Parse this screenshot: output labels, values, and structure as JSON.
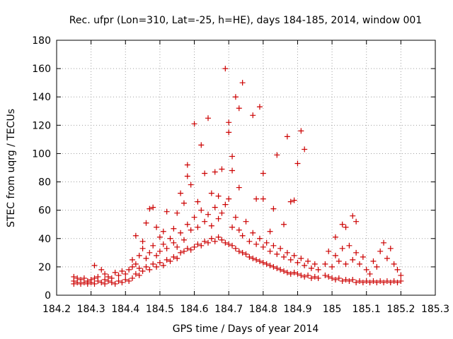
{
  "chart_data": {
    "type": "scatter",
    "title": "Rec. ufpr (Lon=310, Lat=-25, h=HE), days 184-185, 2014, window 001",
    "xlabel": "GPS time / Days of year 2014",
    "ylabel": "STEC from uqrg / TECUs",
    "xlim": [
      184.2,
      185.3
    ],
    "ylim": [
      0,
      180
    ],
    "xticks": [
      184.2,
      184.3,
      184.4,
      184.5,
      184.6,
      184.7,
      184.8,
      184.9,
      185,
      185.1,
      185.2,
      185.3
    ],
    "xtick_labels": [
      "184.2",
      "184.3",
      "184.4",
      "184.5",
      "184.6",
      "184.7",
      "184.8",
      "184.9",
      "185",
      "185.1",
      "185.2",
      "185.3"
    ],
    "yticks": [
      0,
      20,
      40,
      60,
      80,
      100,
      120,
      140,
      160,
      180
    ],
    "ytick_labels": [
      "0",
      "20",
      "40",
      "60",
      "80",
      "100",
      "120",
      "140",
      "160",
      "180"
    ],
    "grid": true,
    "marker": "plus",
    "color": "#cc0000",
    "series": [
      {
        "points": [
          [
            184.25,
            8
          ],
          [
            184.25,
            10
          ],
          [
            184.25,
            13
          ],
          [
            184.26,
            9
          ],
          [
            184.26,
            12
          ],
          [
            184.27,
            8
          ],
          [
            184.27,
            11
          ],
          [
            184.28,
            9
          ],
          [
            184.28,
            12
          ],
          [
            184.29,
            8
          ],
          [
            184.29,
            10
          ],
          [
            184.3,
            9
          ],
          [
            184.3,
            11
          ],
          [
            184.31,
            21
          ],
          [
            184.31,
            8
          ],
          [
            184.31,
            12
          ],
          [
            184.32,
            10
          ],
          [
            184.32,
            13
          ],
          [
            184.33,
            9
          ],
          [
            184.33,
            18
          ],
          [
            184.34,
            8
          ],
          [
            184.34,
            11
          ],
          [
            184.34,
            15
          ],
          [
            184.35,
            10
          ],
          [
            184.35,
            13
          ],
          [
            184.36,
            9
          ],
          [
            184.36,
            12
          ],
          [
            184.37,
            8
          ],
          [
            184.37,
            16
          ],
          [
            184.38,
            10
          ],
          [
            184.38,
            14
          ],
          [
            184.39,
            9
          ],
          [
            184.39,
            17
          ],
          [
            184.4,
            11
          ],
          [
            184.4,
            15
          ],
          [
            184.41,
            10
          ],
          [
            184.41,
            18
          ],
          [
            184.42,
            12
          ],
          [
            184.42,
            20
          ],
          [
            184.42,
            25
          ],
          [
            184.43,
            15
          ],
          [
            184.43,
            22
          ],
          [
            184.43,
            42
          ],
          [
            184.44,
            14
          ],
          [
            184.44,
            19
          ],
          [
            184.44,
            28
          ],
          [
            184.45,
            17
          ],
          [
            184.45,
            33
          ],
          [
            184.45,
            38
          ],
          [
            184.46,
            20
          ],
          [
            184.46,
            26
          ],
          [
            184.46,
            51
          ],
          [
            184.47,
            18
          ],
          [
            184.47,
            30
          ],
          [
            184.47,
            61
          ],
          [
            184.48,
            22
          ],
          [
            184.48,
            35
          ],
          [
            184.48,
            62
          ],
          [
            184.49,
            20
          ],
          [
            184.49,
            28
          ],
          [
            184.49,
            48
          ],
          [
            184.5,
            23
          ],
          [
            184.5,
            31
          ],
          [
            184.5,
            41
          ],
          [
            184.51,
            21
          ],
          [
            184.51,
            36
          ],
          [
            184.51,
            45
          ],
          [
            184.52,
            25
          ],
          [
            184.52,
            33
          ],
          [
            184.52,
            59
          ],
          [
            184.53,
            24
          ],
          [
            184.53,
            40
          ],
          [
            184.54,
            27
          ],
          [
            184.54,
            37
          ],
          [
            184.54,
            47
          ],
          [
            184.55,
            26
          ],
          [
            184.55,
            34
          ],
          [
            184.55,
            58
          ],
          [
            184.56,
            30
          ],
          [
            184.56,
            44
          ],
          [
            184.56,
            72
          ],
          [
            184.57,
            31
          ],
          [
            184.57,
            39
          ],
          [
            184.57,
            65
          ],
          [
            184.58,
            33
          ],
          [
            184.58,
            50
          ],
          [
            184.58,
            84
          ],
          [
            184.58,
            92
          ],
          [
            184.59,
            32
          ],
          [
            184.59,
            46
          ],
          [
            184.59,
            78
          ],
          [
            184.6,
            34
          ],
          [
            184.6,
            55
          ],
          [
            184.6,
            121
          ],
          [
            184.61,
            36
          ],
          [
            184.61,
            48
          ],
          [
            184.61,
            66
          ],
          [
            184.62,
            35
          ],
          [
            184.62,
            60
          ],
          [
            184.62,
            106
          ],
          [
            184.63,
            38
          ],
          [
            184.63,
            52
          ],
          [
            184.63,
            86
          ],
          [
            184.64,
            37
          ],
          [
            184.64,
            57
          ],
          [
            184.64,
            125
          ],
          [
            184.65,
            40
          ],
          [
            184.65,
            49
          ],
          [
            184.65,
            72
          ],
          [
            184.66,
            38
          ],
          [
            184.66,
            62
          ],
          [
            184.66,
            87
          ],
          [
            184.67,
            41
          ],
          [
            184.67,
            54
          ],
          [
            184.67,
            70
          ],
          [
            184.68,
            39
          ],
          [
            184.68,
            58
          ],
          [
            184.68,
            89
          ],
          [
            184.69,
            37
          ],
          [
            184.69,
            64
          ],
          [
            184.69,
            160
          ],
          [
            184.7,
            36
          ],
          [
            184.7,
            68
          ],
          [
            184.7,
            115
          ],
          [
            184.7,
            122
          ],
          [
            184.71,
            35
          ],
          [
            184.71,
            48
          ],
          [
            184.71,
            88
          ],
          [
            184.71,
            98
          ],
          [
            184.72,
            33
          ],
          [
            184.72,
            55
          ],
          [
            184.72,
            140
          ],
          [
            184.73,
            31
          ],
          [
            184.73,
            46
          ],
          [
            184.73,
            132
          ],
          [
            184.73,
            76
          ],
          [
            184.74,
            30
          ],
          [
            184.74,
            42
          ],
          [
            184.74,
            150
          ],
          [
            184.75,
            29
          ],
          [
            184.75,
            52
          ],
          [
            184.76,
            27
          ],
          [
            184.76,
            38
          ],
          [
            184.77,
            26
          ],
          [
            184.77,
            44
          ],
          [
            184.77,
            127
          ],
          [
            184.78,
            25
          ],
          [
            184.78,
            36
          ],
          [
            184.78,
            68
          ],
          [
            184.79,
            24
          ],
          [
            184.79,
            40
          ],
          [
            184.79,
            133
          ],
          [
            184.8,
            23
          ],
          [
            184.8,
            34
          ],
          [
            184.8,
            68
          ],
          [
            184.8,
            86
          ],
          [
            184.81,
            22
          ],
          [
            184.81,
            37
          ],
          [
            184.82,
            21
          ],
          [
            184.82,
            31
          ],
          [
            184.82,
            45
          ],
          [
            184.83,
            20
          ],
          [
            184.83,
            35
          ],
          [
            184.83,
            61
          ],
          [
            184.84,
            19
          ],
          [
            184.84,
            29
          ],
          [
            184.84,
            99
          ],
          [
            184.85,
            18
          ],
          [
            184.85,
            33
          ],
          [
            184.86,
            17
          ],
          [
            184.86,
            27
          ],
          [
            184.86,
            50
          ],
          [
            184.87,
            16
          ],
          [
            184.87,
            30
          ],
          [
            184.87,
            112
          ],
          [
            184.88,
            15
          ],
          [
            184.88,
            25
          ],
          [
            184.88,
            66
          ],
          [
            184.89,
            16
          ],
          [
            184.89,
            28
          ],
          [
            184.89,
            67
          ],
          [
            184.9,
            15
          ],
          [
            184.9,
            23
          ],
          [
            184.9,
            93
          ],
          [
            184.91,
            14
          ],
          [
            184.91,
            26
          ],
          [
            184.91,
            116
          ],
          [
            184.92,
            13
          ],
          [
            184.92,
            21
          ],
          [
            184.92,
            103
          ],
          [
            184.93,
            14
          ],
          [
            184.93,
            24
          ],
          [
            184.94,
            12
          ],
          [
            184.94,
            19
          ],
          [
            184.95,
            13
          ],
          [
            184.95,
            22
          ],
          [
            184.96,
            12
          ],
          [
            184.96,
            18
          ],
          [
            184.98,
            14
          ],
          [
            184.98,
            22
          ],
          [
            184.99,
            13
          ],
          [
            184.99,
            31
          ],
          [
            185.0,
            12
          ],
          [
            185.0,
            20
          ],
          [
            185.01,
            11
          ],
          [
            185.01,
            28
          ],
          [
            185.01,
            41
          ],
          [
            185.02,
            12
          ],
          [
            185.02,
            24
          ],
          [
            185.03,
            10
          ],
          [
            185.03,
            33
          ],
          [
            185.03,
            50
          ],
          [
            185.04,
            11
          ],
          [
            185.04,
            22
          ],
          [
            185.04,
            48
          ],
          [
            185.05,
            10
          ],
          [
            185.05,
            35
          ],
          [
            185.06,
            11
          ],
          [
            185.06,
            25
          ],
          [
            185.06,
            56
          ],
          [
            185.07,
            9
          ],
          [
            185.07,
            30
          ],
          [
            185.07,
            52
          ],
          [
            185.08,
            10
          ],
          [
            185.08,
            22
          ],
          [
            185.09,
            9
          ],
          [
            185.09,
            27
          ],
          [
            185.1,
            10
          ],
          [
            185.1,
            18
          ],
          [
            185.11,
            9
          ],
          [
            185.11,
            15
          ],
          [
            185.12,
            10
          ],
          [
            185.12,
            24
          ],
          [
            185.13,
            9
          ],
          [
            185.13,
            20
          ],
          [
            185.14,
            10
          ],
          [
            185.14,
            31
          ],
          [
            185.15,
            9
          ],
          [
            185.15,
            37
          ],
          [
            185.16,
            10
          ],
          [
            185.16,
            26
          ],
          [
            185.17,
            9
          ],
          [
            185.17,
            33
          ],
          [
            185.18,
            10
          ],
          [
            185.18,
            22
          ],
          [
            185.19,
            9
          ],
          [
            185.19,
            18
          ],
          [
            185.2,
            10
          ],
          [
            185.2,
            14
          ]
        ]
      }
    ]
  }
}
